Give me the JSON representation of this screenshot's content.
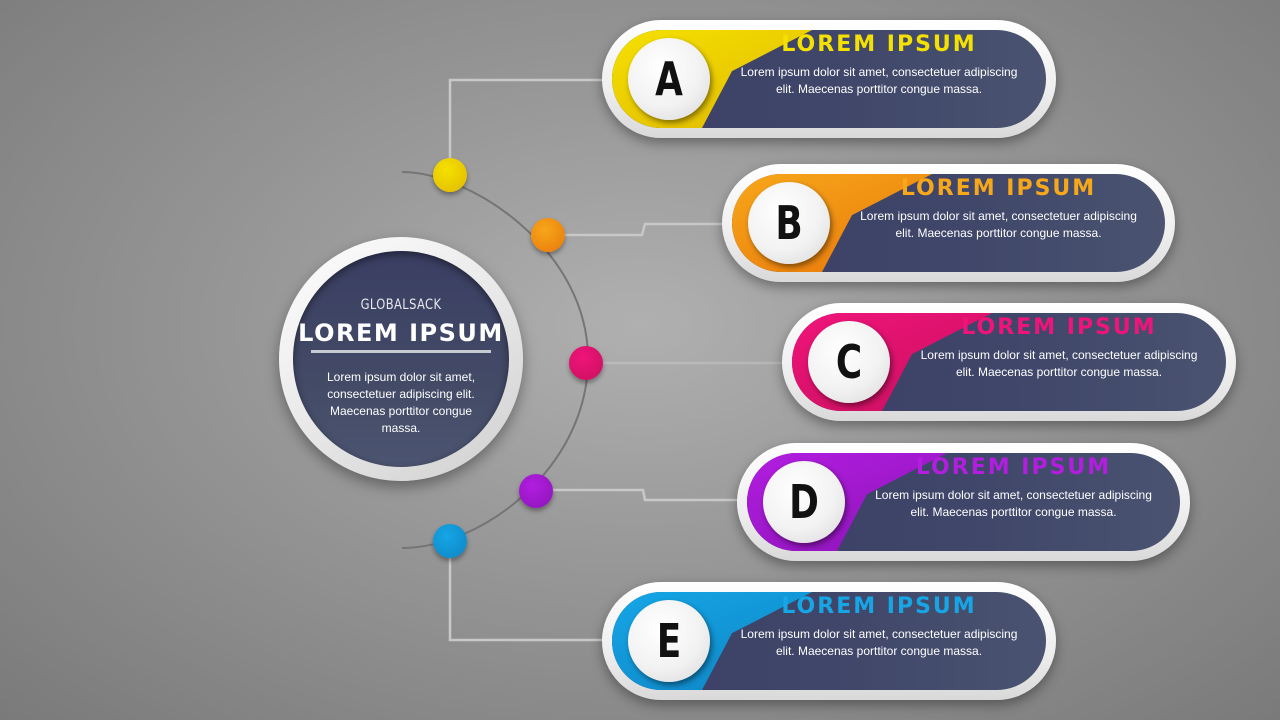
{
  "center": {
    "brand": "GLOBALSACK",
    "title": "LOREM IPSUM",
    "body": "Lorem ipsum dolor sit amet, consectetuer adipiscing elit. Maecenas porttitor congue massa."
  },
  "items": [
    {
      "letter": "A",
      "title": "LOREM IPSUM",
      "body": "Lorem ipsum dolor sit amet, consectetuer adipiscing elit. Maecenas porttitor congue massa.",
      "color": "#f5e100",
      "color_dark": "#e0b800"
    },
    {
      "letter": "B",
      "title": "LOREM IPSUM",
      "body": "Lorem ipsum dolor sit amet, consectetuer adipiscing elit. Maecenas porttitor congue massa.",
      "color": "#f7a71a",
      "color_dark": "#e8770a"
    },
    {
      "letter": "C",
      "title": "LOREM IPSUM",
      "body": "Lorem ipsum dolor sit amet, consectetuer adipiscing elit. Maecenas porttitor congue massa.",
      "color": "#f0147a",
      "color_dark": "#c8105e"
    },
    {
      "letter": "D",
      "title": "LOREM IPSUM",
      "body": "Lorem ipsum dolor sit amet, consectetuer adipiscing elit. Maecenas porttitor congue massa.",
      "color": "#b21de0",
      "color_dark": "#8c14b8"
    },
    {
      "letter": "E",
      "title": "LOREM IPSUM",
      "body": "Lorem ipsum dolor sit amet, consectetuer adipiscing elit. Maecenas porttitor congue massa.",
      "color": "#16a6e6",
      "color_dark": "#0d84c4"
    }
  ]
}
